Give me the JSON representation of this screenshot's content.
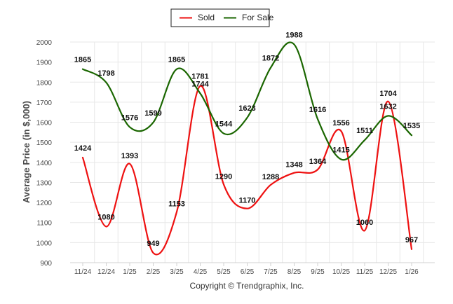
{
  "chart_data": {
    "type": "line",
    "title": "",
    "xlabel": "",
    "ylabel": "Average Price (in $,000)",
    "ylim": [
      900,
      2000
    ],
    "yticks": [
      900,
      1000,
      1100,
      1200,
      1300,
      1400,
      1500,
      1600,
      1700,
      1800,
      1900,
      2000
    ],
    "categories": [
      "11/24",
      "12/24",
      "1/25",
      "2/25",
      "3/25",
      "4/25",
      "5/25",
      "6/25",
      "7/25",
      "8/25",
      "9/25",
      "10/25",
      "11/25",
      "12/25",
      "1/26"
    ],
    "series": [
      {
        "name": "Sold",
        "color": "#ee1111",
        "values": [
          1424,
          1080,
          1393,
          949,
          1153,
          1781,
          1290,
          1170,
          1288,
          1348,
          1364,
          1556,
          1060,
          1704,
          967
        ]
      },
      {
        "name": "For Sale",
        "color": "#1a6600",
        "values": [
          1865,
          1798,
          1576,
          1599,
          1865,
          1744,
          1544,
          1623,
          1872,
          1988,
          1616,
          1415,
          1511,
          1632,
          1535
        ]
      }
    ],
    "legend": {
      "placement": "top-center"
    },
    "credit": "Copyright © Trendgraphix, Inc."
  },
  "colors": {
    "grid": "#e7e7e7",
    "axis": "#d0d0d0",
    "text": "#4a4a4a"
  }
}
